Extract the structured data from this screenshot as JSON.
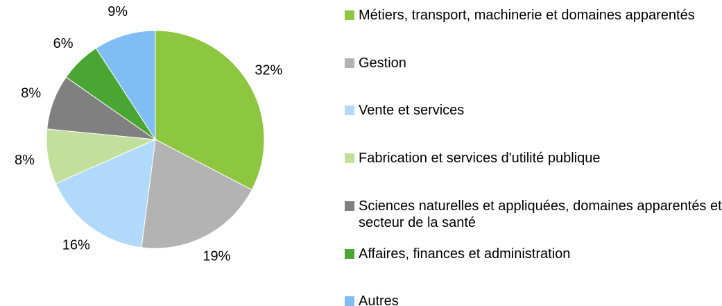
{
  "chart_data": {
    "type": "pie",
    "categories": [
      "Métiers, transport, machinerie et domaines apparentés",
      "Gestion",
      "Vente et services",
      "Fabrication et services d'utilité publique",
      "Sciences naturelles et appliquées, domaines apparentés et secteur de la santé",
      "Affaires, finances et administration",
      "Autres"
    ],
    "values": [
      32,
      19,
      16,
      8,
      8,
      6,
      9
    ],
    "value_labels": [
      "32%",
      "19%",
      "16%",
      "8%",
      "8%",
      "6%",
      "9%"
    ],
    "colors": [
      "#8dc63f",
      "#b3b3b3",
      "#b0d9fb",
      "#c2e09c",
      "#808080",
      "#4aa532",
      "#80bdf5"
    ],
    "legend": "right"
  }
}
